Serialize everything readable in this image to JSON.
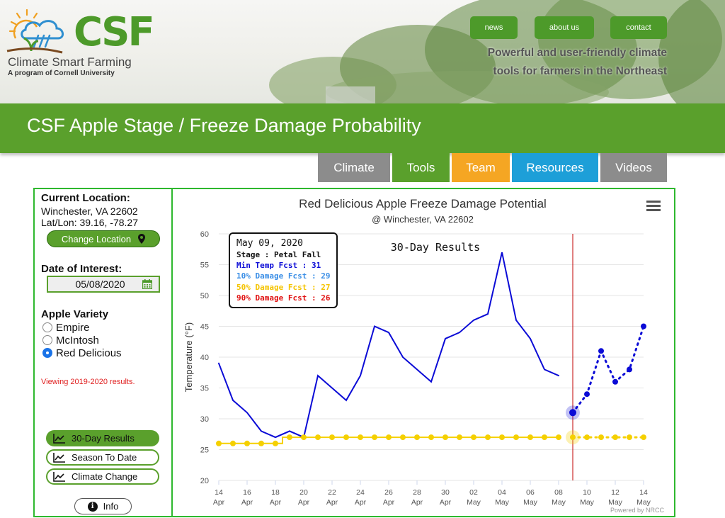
{
  "header": {
    "logo_text": "CSF",
    "logo_subtitle": "Climate Smart Farming",
    "logo_subtitle2": "A program of Cornell University",
    "nav_links": [
      "news",
      "about us",
      "contact"
    ],
    "tagline_lines": [
      "Powerful and user-friendly climate",
      "tools for farmers in the Northeast"
    ]
  },
  "page_title": "CSF Apple Stage / Freeze Damage Probability",
  "tabs": [
    {
      "label": "Climate",
      "color": "#8c8c8c"
    },
    {
      "label": "Tools",
      "color": "#5aa02c"
    },
    {
      "label": "Team",
      "color": "#f5a623"
    },
    {
      "label": "Resources",
      "color": "#1d9fd8"
    },
    {
      "label": "Videos",
      "color": "#8c8c8c"
    }
  ],
  "location": {
    "heading": "Current Location:",
    "name": "Winchester, VA 22602",
    "latlon": "Lat/Lon: 39.16, -78.27",
    "change_button": "Change Location"
  },
  "date_of_interest": {
    "heading": "Date of Interest:",
    "value": "05/08/2020"
  },
  "variety": {
    "heading": "Apple Variety",
    "options": [
      "Empire",
      "McIntosh",
      "Red Delicious"
    ],
    "selected": "Red Delicious"
  },
  "viewing_note": "Viewing 2019-2020 results.",
  "result_buttons": [
    {
      "label": "30-Day Results",
      "active": true
    },
    {
      "label": "Season To Date",
      "active": false
    },
    {
      "label": "Climate Change",
      "active": false
    }
  ],
  "info_button": "Info",
  "chart_data": {
    "type": "line",
    "title": "Red Delicious Apple Freeze Damage Potential",
    "subtitle": "@ Winchester, VA 22602",
    "annotation": "30-Day Results",
    "ylabel": "Temperature (°F)",
    "ylim": [
      20,
      60
    ],
    "yticks": [
      20,
      25,
      30,
      35,
      40,
      45,
      50,
      55,
      60
    ],
    "credits": "Powered by NRCC",
    "x": [
      "2020-04-14",
      "2020-04-15",
      "2020-04-16",
      "2020-04-17",
      "2020-04-18",
      "2020-04-19",
      "2020-04-20",
      "2020-04-21",
      "2020-04-22",
      "2020-04-23",
      "2020-04-24",
      "2020-04-25",
      "2020-04-26",
      "2020-04-27",
      "2020-04-28",
      "2020-04-29",
      "2020-04-30",
      "2020-05-01",
      "2020-05-02",
      "2020-05-03",
      "2020-05-04",
      "2020-05-05",
      "2020-05-06",
      "2020-05-07",
      "2020-05-08",
      "2020-05-09",
      "2020-05-10",
      "2020-05-11",
      "2020-05-12",
      "2020-05-13",
      "2020-05-14"
    ],
    "x_tick_labels": [
      {
        "day": "14",
        "month": "Apr"
      },
      {
        "day": "16",
        "month": "Apr"
      },
      {
        "day": "18",
        "month": "Apr"
      },
      {
        "day": "20",
        "month": "Apr"
      },
      {
        "day": "22",
        "month": "Apr"
      },
      {
        "day": "24",
        "month": "Apr"
      },
      {
        "day": "26",
        "month": "Apr"
      },
      {
        "day": "28",
        "month": "Apr"
      },
      {
        "day": "30",
        "month": "Apr"
      },
      {
        "day": "02",
        "month": "May"
      },
      {
        "day": "04",
        "month": "May"
      },
      {
        "day": "06",
        "month": "May"
      },
      {
        "day": "08",
        "month": "May"
      },
      {
        "day": "10",
        "month": "May"
      },
      {
        "day": "12",
        "month": "May"
      },
      {
        "day": "14",
        "month": "May"
      }
    ],
    "series": [
      {
        "name": "Min Temp",
        "color": "#0b0bd6",
        "values": [
          39,
          33,
          31,
          28,
          27,
          28,
          27,
          37,
          35,
          33,
          37,
          45,
          44,
          40,
          38,
          36,
          43,
          44,
          46,
          47,
          57,
          46,
          43,
          38,
          37,
          null,
          null,
          null,
          null,
          null,
          null
        ]
      },
      {
        "name": "Min Temp Fcst",
        "color": "#0b0bd6",
        "style": "dotted",
        "values": [
          null,
          null,
          null,
          null,
          null,
          null,
          null,
          null,
          null,
          null,
          null,
          null,
          null,
          null,
          null,
          null,
          null,
          null,
          null,
          null,
          null,
          null,
          null,
          null,
          null,
          31,
          34,
          41,
          36,
          38,
          45
        ]
      },
      {
        "name": "50% Damage",
        "color": "#f5d000",
        "values": [
          26,
          26,
          26,
          26,
          26,
          27,
          27,
          27,
          27,
          27,
          27,
          27,
          27,
          27,
          27,
          27,
          27,
          27,
          27,
          27,
          27,
          27,
          27,
          27,
          27,
          null,
          null,
          null,
          null,
          null,
          null
        ]
      },
      {
        "name": "50% Damage Fcst",
        "color": "#f5d000",
        "style": "dotted",
        "values": [
          null,
          null,
          null,
          null,
          null,
          null,
          null,
          null,
          null,
          null,
          null,
          null,
          null,
          null,
          null,
          null,
          null,
          null,
          null,
          null,
          null,
          null,
          null,
          null,
          null,
          27,
          27,
          27,
          27,
          27,
          27
        ]
      }
    ],
    "forecast_divider": "2020-05-09",
    "divider_color": "#c00000",
    "tooltip": {
      "date": "May 09, 2020",
      "stage": "Stage : Petal Fall",
      "min_temp": "Min Temp Fcst : 31",
      "damage10": "10% Damage Fcst : 29",
      "damage50": "50% Damage Fcst : 27",
      "damage90": "90% Damage Fcst : 26",
      "colors": {
        "min_temp": "#0b0bd6",
        "damage10": "#3a8ee6",
        "damage50": "#f5c400",
        "damage90": "#e01010"
      }
    }
  }
}
